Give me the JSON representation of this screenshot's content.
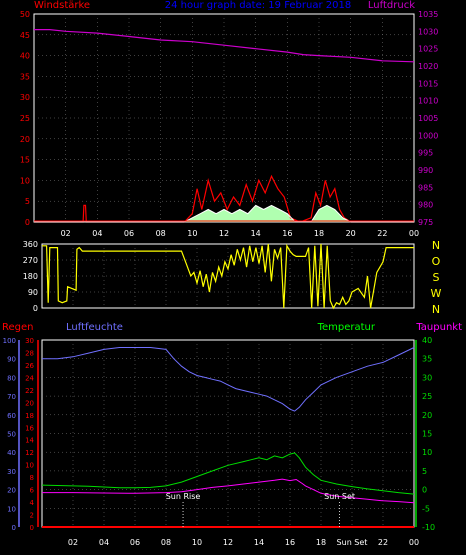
{
  "header": {
    "title": "24 hour graph date: 19 Februar 2018",
    "wind_label": "Windstärke",
    "pressure_label": "Luftdruck"
  },
  "colors": {
    "background": "#000000",
    "grid": "#808080",
    "frame": "#ffffff",
    "wind": "#ff0000",
    "gust": "#ff3030",
    "avg": "#ffffff",
    "avg_fill": "#b0ffb0",
    "pressure": "#cc00cc",
    "direction": "#ffff00",
    "rain": "#ff0000",
    "humidity": "#7070ff",
    "temperature": "#00dd00",
    "dewpoint": "#ff00ff",
    "title": "#0000ff",
    "label_green": "#00ff00"
  },
  "chart_data": [
    {
      "type": "line",
      "name": "wind-pressure",
      "x_ticks": [
        "02",
        "04",
        "06",
        "08",
        "10",
        "12",
        "14",
        "16",
        "18",
        "20",
        "22",
        "00"
      ],
      "y_left": {
        "label": "Windstärke",
        "ticks": [
          "0",
          "5",
          "10",
          "15",
          "20",
          "25",
          "30",
          "35",
          "40",
          "45",
          "50"
        ],
        "range": [
          0,
          50
        ]
      },
      "y_right": {
        "label": "Luftdruck",
        "ticks": [
          "975",
          "980",
          "985",
          "990",
          "995",
          "1000",
          "1005",
          "1010",
          "1015",
          "1020",
          "1025",
          "1030",
          "1035"
        ],
        "range": [
          975,
          1035
        ]
      },
      "grid": true,
      "series": [
        {
          "role": "pressure",
          "axis": "right",
          "x": [
            0,
            1,
            2,
            4,
            6,
            8,
            10,
            12,
            14,
            16,
            17,
            18,
            20,
            22,
            24
          ],
          "y": [
            1030.5,
            1030.5,
            1030,
            1029.5,
            1028.5,
            1027.5,
            1027,
            1026,
            1025,
            1024,
            1023.3,
            1023,
            1022.5,
            1021.5,
            1021.2
          ]
        },
        {
          "role": "wind",
          "axis": "left",
          "x": [
            0,
            3.1,
            3.15,
            3.25,
            3.3,
            9,
            9.5,
            10,
            10.3,
            10.6,
            11,
            11.4,
            11.8,
            12.2,
            12.6,
            13,
            13.4,
            13.8,
            14.2,
            14.6,
            15,
            15.4,
            15.8,
            16.2,
            16.8,
            17.5,
            17.8,
            18.1,
            18.4,
            18.7,
            19,
            19.3,
            19.6,
            20,
            24
          ],
          "y": [
            0,
            0,
            4,
            4,
            0,
            0,
            0,
            2,
            8,
            3,
            10,
            5,
            7,
            3,
            6,
            4,
            9,
            5,
            10,
            7,
            11,
            8,
            6,
            1,
            0,
            1,
            7,
            4,
            10,
            6,
            8,
            3,
            1,
            0,
            0
          ]
        },
        {
          "role": "avg",
          "axis": "left",
          "x": [
            0,
            9.5,
            10,
            10.5,
            11,
            11.5,
            12,
            12.5,
            13,
            13.5,
            14,
            14.5,
            15,
            15.5,
            16,
            16.5,
            17.5,
            18,
            18.5,
            19,
            19.5,
            20,
            24
          ],
          "y": [
            0,
            0,
            1,
            2,
            3,
            2,
            3,
            2,
            3,
            2,
            4,
            3,
            4,
            3,
            2,
            0,
            0,
            3,
            4,
            3,
            1,
            0,
            0
          ]
        }
      ]
    },
    {
      "type": "line",
      "name": "wind-direction",
      "y_left": {
        "ticks": [
          "0",
          "90",
          "180",
          "270",
          "360"
        ],
        "range": [
          0,
          360
        ]
      },
      "y_right": {
        "ticks": [
          "N",
          "W",
          "S",
          "O",
          "N"
        ]
      },
      "grid": true,
      "series": [
        {
          "role": "direction",
          "x": [
            0,
            0.3,
            0.4,
            0.5,
            1.0,
            1.05,
            1.3,
            1.6,
            1.65,
            2.2,
            2.25,
            2.4,
            2.5,
            2.6,
            5,
            9,
            9.3,
            9.6,
            9.8,
            10,
            10.2,
            10.4,
            10.6,
            10.8,
            11,
            11.2,
            11.4,
            11.6,
            11.8,
            12,
            12.2,
            12.4,
            12.6,
            12.8,
            13,
            13.2,
            13.4,
            13.6,
            13.8,
            14,
            14.2,
            14.4,
            14.6,
            14.8,
            15,
            15.2,
            15.4,
            15.6,
            15.8,
            16,
            16.2,
            16.4,
            17,
            17.2,
            17.4,
            17.6,
            17.8,
            18,
            18.2,
            18.4,
            18.6,
            18.8,
            19,
            19.2,
            19.4,
            19.6,
            19.8,
            20,
            20.4,
            20.8,
            21,
            21.2,
            21.6,
            22,
            22.2,
            24
          ],
          "y": [
            350,
            350,
            30,
            340,
            340,
            40,
            30,
            40,
            120,
            100,
            330,
            340,
            330,
            320,
            320,
            320,
            250,
            180,
            200,
            140,
            210,
            120,
            190,
            90,
            200,
            150,
            230,
            180,
            260,
            220,
            300,
            240,
            330,
            270,
            340,
            230,
            350,
            260,
            340,
            250,
            350,
            200,
            360,
            150,
            330,
            280,
            340,
            0,
            350,
            320,
            300,
            290,
            290,
            340,
            0,
            350,
            10,
            360,
            0,
            350,
            40,
            0,
            30,
            20,
            60,
            20,
            40,
            90,
            110,
            60,
            180,
            0,
            200,
            260,
            340,
            340
          ]
        }
      ]
    },
    {
      "type": "line",
      "name": "humidity-temperature",
      "y_hum": {
        "label": "Luftfeuchte",
        "ticks": [
          "0",
          "10",
          "20",
          "30",
          "40",
          "50",
          "60",
          "70",
          "80",
          "90",
          "100"
        ],
        "range": [
          0,
          100
        ]
      },
      "y_rain": {
        "label": "Regen",
        "ticks": [
          "0",
          "2",
          "4",
          "6",
          "8",
          "10",
          "12",
          "14",
          "16",
          "18",
          "20",
          "22",
          "24",
          "26",
          "28",
          "30"
        ],
        "range": [
          0,
          30
        ]
      },
      "y_temp": {
        "label": "Temperatur",
        "ticks": [
          "-10",
          "-5",
          "0",
          "5",
          "10",
          "15",
          "20",
          "25",
          "30",
          "35",
          "40"
        ],
        "range": [
          -10,
          40
        ]
      },
      "y_dew": {
        "label": "Taupunkt"
      },
      "x_ticks": [
        "02",
        "04",
        "06",
        "08",
        "10",
        "12",
        "14",
        "16",
        "18",
        "Sun Set",
        "22",
        "00"
      ],
      "annotations": [
        {
          "text": "Sun Rise",
          "x": 9.1
        },
        {
          "text": "Sun Set",
          "x": 19.2
        }
      ],
      "grid": true,
      "series": [
        {
          "role": "humidity",
          "axis": "hum",
          "x": [
            0,
            1,
            2,
            3,
            4,
            5,
            6,
            7,
            8,
            8.5,
            9,
            9.5,
            10,
            10.5,
            11,
            11.5,
            12,
            12.5,
            13,
            13.5,
            14,
            14.5,
            15,
            15.5,
            16,
            16.3,
            16.6,
            17,
            17.5,
            18,
            19,
            20,
            21,
            22,
            23,
            24
          ],
          "y": [
            90,
            90,
            91,
            93,
            95,
            96,
            96,
            96,
            95,
            90,
            86,
            83,
            81,
            80,
            79,
            78,
            76,
            74,
            73,
            72,
            71,
            70,
            68,
            66,
            63,
            62,
            64,
            68,
            72,
            76,
            80,
            83,
            86,
            88,
            92,
            96
          ]
        },
        {
          "role": "temperature",
          "axis": "temp",
          "x": [
            0,
            1,
            2,
            3,
            4,
            5,
            6,
            7,
            8,
            9,
            10,
            11,
            12,
            13,
            13.5,
            14,
            14.5,
            15,
            15.5,
            16,
            16.3,
            16.6,
            17,
            17.5,
            18,
            19,
            20,
            21,
            22,
            23,
            24
          ],
          "y": [
            1.2,
            1.1,
            1.0,
            0.9,
            0.7,
            0.5,
            0.5,
            0.6,
            1,
            2,
            3.5,
            5,
            6.5,
            7.5,
            8,
            8.5,
            8,
            9,
            8.5,
            9.5,
            9.8,
            8.5,
            6,
            4,
            2.5,
            1.5,
            0.8,
            0.2,
            -0.3,
            -0.8,
            -1.2
          ]
        },
        {
          "role": "dewpoint",
          "axis": "temp",
          "x": [
            0,
            2,
            4,
            6,
            8,
            9,
            10,
            11,
            12,
            13,
            14,
            15,
            15.5,
            16,
            16.4,
            16.8,
            17,
            17.5,
            18,
            19,
            20,
            21,
            22,
            23,
            24
          ],
          "y": [
            -0.8,
            -0.8,
            -0.9,
            -1.0,
            -0.8,
            -0.6,
            0,
            0.6,
            1.0,
            1.5,
            2,
            2.5,
            2.8,
            2.4,
            2.7,
            1.6,
            1,
            0,
            -1,
            -1.8,
            -2.2,
            -2.6,
            -3,
            -3.2,
            -3.5
          ]
        },
        {
          "role": "rain",
          "axis": "rain",
          "x": [
            0,
            24
          ],
          "y": [
            0,
            0
          ]
        }
      ]
    }
  ]
}
